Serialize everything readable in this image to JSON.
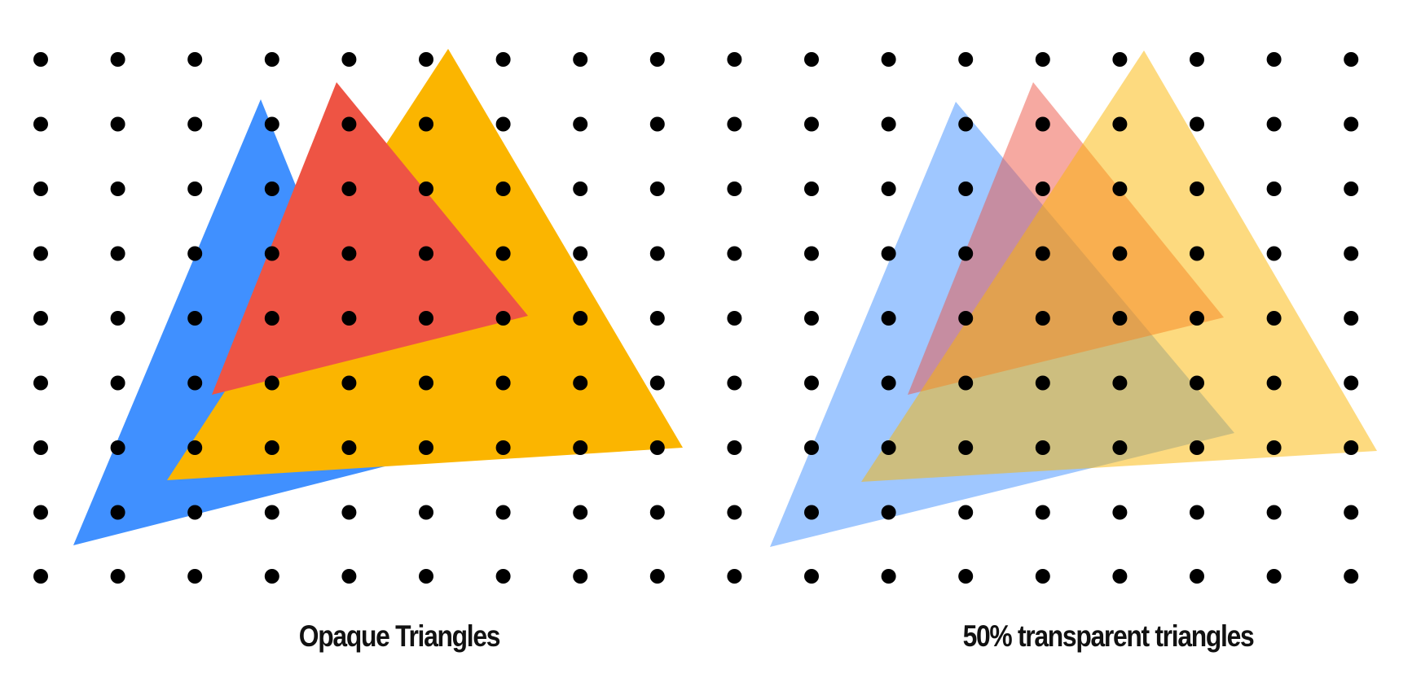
{
  "captions": {
    "left": "Opaque Triangles",
    "right": "50% transparent triangles"
  },
  "panels": [
    {
      "id": "opaque",
      "opacity": 1.0,
      "triangles": [
        {
          "name": "blue-triangle",
          "color": "#4090ff"
        },
        {
          "name": "yellow-triangle",
          "color": "#fbb500"
        },
        {
          "name": "red-triangle",
          "color": "#ee5444"
        }
      ]
    },
    {
      "id": "transparent",
      "opacity": 0.5,
      "triangles": [
        {
          "name": "blue-triangle",
          "color": "#4090ff"
        },
        {
          "name": "red-triangle",
          "color": "#ee5444"
        },
        {
          "name": "yellow-triangle",
          "color": "#fbb500"
        }
      ]
    }
  ],
  "dot_grid": {
    "color": "#000000",
    "columns": 18,
    "rows": 9
  }
}
